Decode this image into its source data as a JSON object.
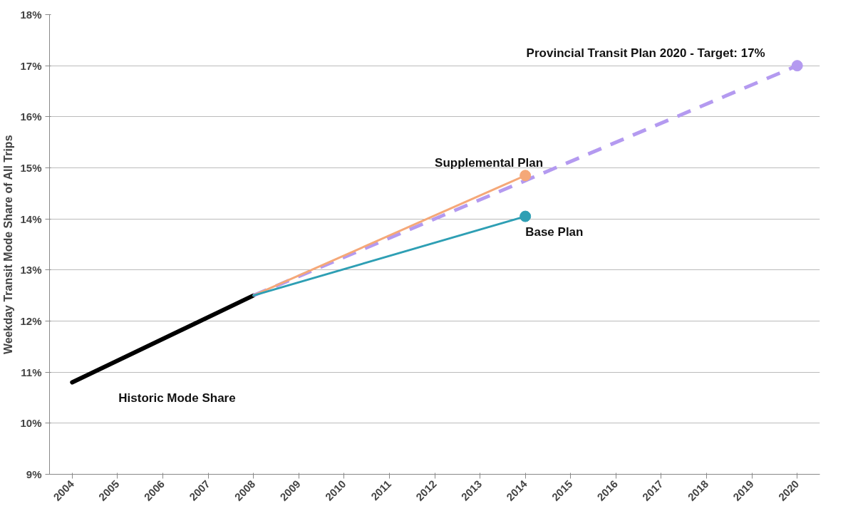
{
  "chart_data": {
    "type": "line",
    "ylabel": "Weekday Transit Mode Share of All Trips",
    "xlim": [
      2003.5,
      2020.5
    ],
    "xticks": [
      2004,
      2005,
      2006,
      2007,
      2008,
      2009,
      2010,
      2011,
      2012,
      2013,
      2014,
      2015,
      2016,
      2017,
      2018,
      2019,
      2020
    ],
    "ylim": [
      9,
      18
    ],
    "yticks": [
      {
        "value": 9,
        "label": "9%"
      },
      {
        "value": 10,
        "label": "10%"
      },
      {
        "value": 11,
        "label": "11%"
      },
      {
        "value": 12,
        "label": "12%"
      },
      {
        "value": 13,
        "label": "13%"
      },
      {
        "value": 14,
        "label": "14%"
      },
      {
        "value": 15,
        "label": "15%"
      },
      {
        "value": 16,
        "label": "16%"
      },
      {
        "value": 17,
        "label": "17%"
      },
      {
        "value": 18,
        "label": "18%"
      }
    ],
    "grid": "y",
    "series": [
      {
        "name": "Historic Mode Share",
        "color": "#000000",
        "x": [
          2004,
          2008
        ],
        "values": [
          10.8,
          12.5
        ],
        "line_style": "solid"
      },
      {
        "name": "Provincial Transit Plan 2020 - Target: 17%",
        "color": "#b49af0",
        "x": [
          2008,
          2020
        ],
        "values": [
          12.5,
          17
        ],
        "line_style": "dashed"
      },
      {
        "name": "Supplemental Plan",
        "color": "#f5a878",
        "x": [
          2008,
          2014
        ],
        "values": [
          12.5,
          14.85
        ],
        "line_style": "solid"
      },
      {
        "name": "Base Plan",
        "color": "#2e9fb4",
        "x": [
          2008,
          2014
        ],
        "values": [
          12.5,
          14.05
        ],
        "line_style": "solid"
      },
      {
        "type": "scatter",
        "marker": "circle",
        "x": [
          2014,
          2014,
          2020
        ],
        "values": [
          14.85,
          14.05,
          17
        ],
        "colors": [
          "#f5a878",
          "#2e9fb4",
          "#b49af0"
        ]
      }
    ]
  }
}
